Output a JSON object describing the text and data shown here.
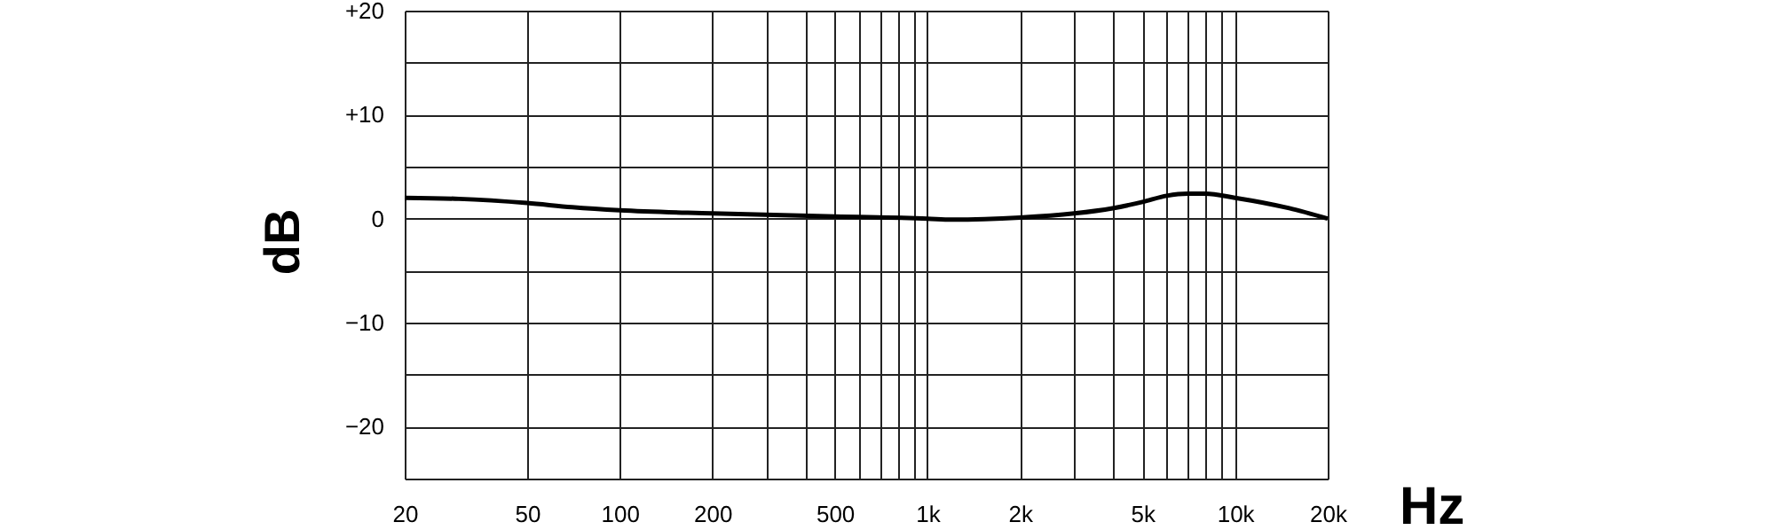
{
  "chart_data": {
    "type": "line",
    "xlabel": "Hz",
    "ylabel": "dB",
    "log": "x",
    "grid": true,
    "marker": "none",
    "line_style": "solid",
    "xlim": [
      20,
      20000
    ],
    "ylim": [
      -25,
      20
    ],
    "xticks": [
      {
        "value": 20,
        "label": "20"
      },
      {
        "value": 50,
        "label": "50"
      },
      {
        "value": 100,
        "label": "100"
      },
      {
        "value": 200,
        "label": "200"
      },
      {
        "value": 300,
        "label": null
      },
      {
        "value": 400,
        "label": null
      },
      {
        "value": 500,
        "label": "500"
      },
      {
        "value": 600,
        "label": null
      },
      {
        "value": 700,
        "label": null
      },
      {
        "value": 800,
        "label": null
      },
      {
        "value": 900,
        "label": null
      },
      {
        "value": 1000,
        "label": "1k"
      },
      {
        "value": 2000,
        "label": "2k"
      },
      {
        "value": 3000,
        "label": null
      },
      {
        "value": 4000,
        "label": null
      },
      {
        "value": 5000,
        "label": "5k"
      },
      {
        "value": 6000,
        "label": null
      },
      {
        "value": 7000,
        "label": null
      },
      {
        "value": 8000,
        "label": null
      },
      {
        "value": 9000,
        "label": null
      },
      {
        "value": 10000,
        "label": "10k"
      },
      {
        "value": 20000,
        "label": "20k"
      }
    ],
    "yticks": [
      {
        "value": -25,
        "label": null
      },
      {
        "value": -20,
        "label": "−20"
      },
      {
        "value": -15,
        "label": null
      },
      {
        "value": -10,
        "label": "−10"
      },
      {
        "value": -5,
        "label": null
      },
      0,
      {
        "value": 5,
        "label": null
      },
      {
        "value": 10,
        "label": "+10"
      },
      {
        "value": 15,
        "label": null
      },
      {
        "value": 20,
        "label": "+20"
      }
    ],
    "x": [
      20,
      30,
      50,
      70,
      100,
      200,
      500,
      1000,
      1200,
      2000,
      3000,
      4000,
      5000,
      6000,
      7000,
      8000,
      10000,
      15000,
      20000
    ],
    "series": [
      {
        "color": "#000000",
        "values": [
          2.0,
          1.9,
          1.5,
          1.1,
          0.8,
          0.5,
          0.2,
          0.0,
          -0.1,
          0.1,
          0.5,
          1.0,
          1.6,
          2.2,
          2.4,
          2.4,
          2.0,
          1.0,
          0.0
        ]
      }
    ]
  }
}
